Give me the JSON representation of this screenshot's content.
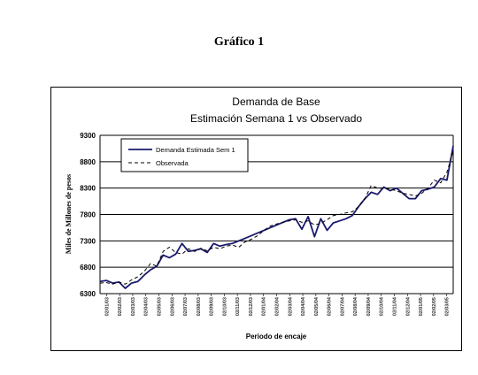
{
  "page": {
    "heading": "Gráfico 1"
  },
  "chart_data": {
    "type": "line",
    "title": "Demanda de Base",
    "subtitle": "Estimación Semana 1 vs  Observado",
    "xlabel": "Periodo de encaje",
    "ylabel": "Miles de Millones de pesos",
    "ylim": [
      6300,
      9300
    ],
    "yticks": [
      6300,
      6800,
      7300,
      7800,
      8300,
      8800,
      9300
    ],
    "grid": true,
    "legend": "top-left",
    "x_tick_labels": [
      "02/01/03",
      "02/02/03",
      "02/03/03",
      "02/04/03",
      "02/05/03",
      "02/06/03",
      "02/07/03",
      "02/08/03",
      "02/09/03",
      "02/10/03",
      "02/11/03",
      "02/12/03",
      "02/01/04",
      "02/02/04",
      "02/03/04",
      "02/04/04",
      "02/05/04",
      "02/06/04",
      "02/07/04",
      "02/08/04",
      "02/09/04",
      "02/10/04",
      "02/11/04",
      "02/12/04",
      "02/01/05",
      "02/02/05",
      "02/03/05"
    ],
    "series": [
      {
        "name": "Demanda Estimada Sem 1",
        "style": "solid",
        "color": "#1a1a6e",
        "values": [
          6530,
          6550,
          6500,
          6520,
          6400,
          6500,
          6530,
          6650,
          6750,
          6820,
          7030,
          6980,
          7050,
          7250,
          7100,
          7120,
          7150,
          7080,
          7250,
          7200,
          7230,
          7250,
          7300,
          7350,
          7400,
          7450,
          7500,
          7550,
          7600,
          7650,
          7700,
          7720,
          7520,
          7760,
          7380,
          7720,
          7500,
          7640,
          7680,
          7720,
          7780,
          7950,
          8100,
          8220,
          8180,
          8320,
          8250,
          8300,
          8200,
          8100,
          8100,
          8250,
          8280,
          8320,
          8480,
          8450,
          9100
        ]
      },
      {
        "name": "Observada",
        "style": "dashed",
        "color": "#000000",
        "values": [
          6500,
          6510,
          6480,
          6520,
          6480,
          6560,
          6620,
          6720,
          6870,
          6820,
          7100,
          7180,
          7080,
          7050,
          7150,
          7100,
          7160,
          7110,
          7180,
          7150,
          7200,
          7220,
          7180,
          7280,
          7330,
          7400,
          7500,
          7580,
          7620,
          7650,
          7680,
          7700,
          7650,
          7680,
          7600,
          7630,
          7700,
          7780,
          7800,
          7830,
          7850,
          7950,
          8100,
          8350,
          8300,
          8300,
          8280,
          8250,
          8200,
          8180,
          8150,
          8200,
          8300,
          8450,
          8400,
          8600,
          9000
        ]
      }
    ]
  }
}
